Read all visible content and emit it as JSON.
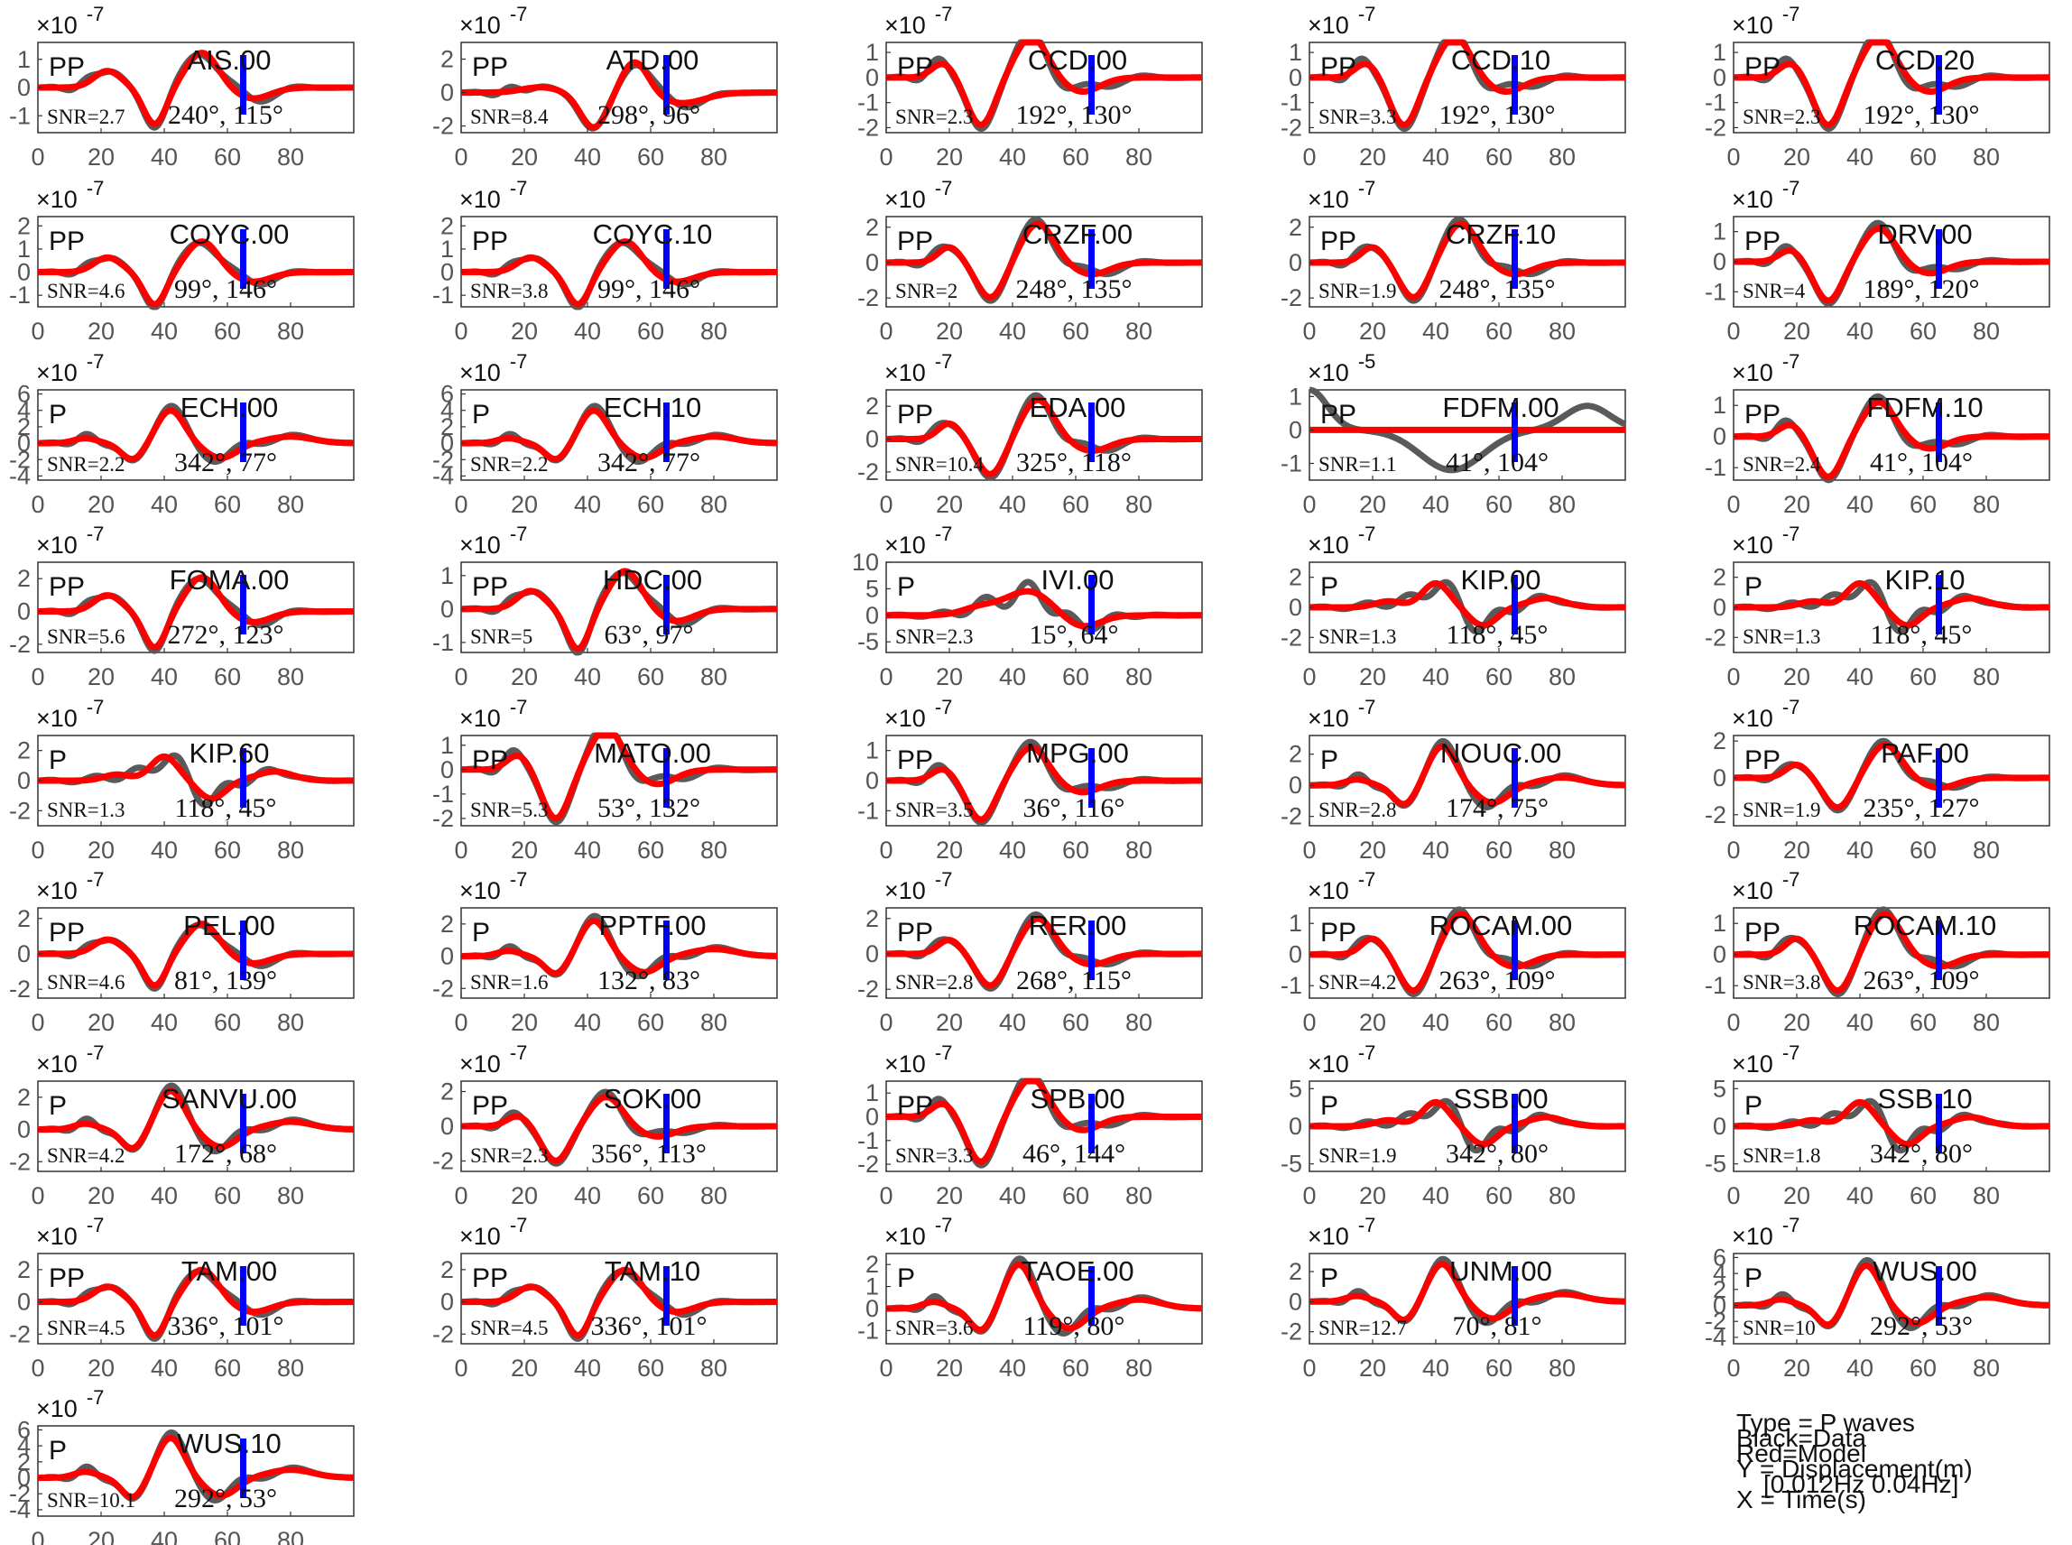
{
  "legend": [
    "Type = P waves",
    "Black=Data",
    "Red=Model",
    "Y = Displacement(m)",
    "[0.012Hz 0.04Hz]",
    "X = Time(s)"
  ],
  "colors": {
    "data": "#5a5a5a",
    "model": "#ff0000",
    "marker": "#0000ff",
    "axis": "#333333"
  },
  "chart_data": {
    "type": "line",
    "x_ticks": [
      0,
      20,
      40,
      60,
      80
    ],
    "xlim": [
      0,
      100
    ],
    "marker_time": 65,
    "panels": [
      {
        "station": "AIS.00",
        "phase": "PP",
        "snr": "SNR=2.7",
        "angles": "240°, 115°",
        "exponent": "-7",
        "yticks": [
          1,
          0,
          -1
        ],
        "ylim": [
          -1.6,
          1.6
        ],
        "amp": 1.3,
        "pattern": "c"
      },
      {
        "station": "ATD.00",
        "phase": "PP",
        "snr": "SNR=8.4",
        "angles": "298°, 96°",
        "exponent": "-7",
        "yticks": [
          2,
          0,
          -2
        ],
        "ylim": [
          -2.4,
          3
        ],
        "amp": 2.1,
        "pattern": "d"
      },
      {
        "station": "CCD.00",
        "phase": "PP",
        "snr": "SNR=2.3",
        "angles": "192°, 130°",
        "exponent": "-7",
        "yticks": [
          1,
          0,
          -1,
          -2
        ],
        "ylim": [
          -2.2,
          1.4
        ],
        "amp": 1.9,
        "pattern": "a"
      },
      {
        "station": "CCD.10",
        "phase": "PP",
        "snr": "SNR=3.3",
        "angles": "192°, 130°",
        "exponent": "-7",
        "yticks": [
          1,
          0,
          -1,
          -2
        ],
        "ylim": [
          -2.2,
          1.4
        ],
        "amp": 1.9,
        "pattern": "a"
      },
      {
        "station": "CCD.20",
        "phase": "PP",
        "snr": "SNR=2.3",
        "angles": "192°, 130°",
        "exponent": "-7",
        "yticks": [
          1,
          0,
          -1,
          -2
        ],
        "ylim": [
          -2.2,
          1.4
        ],
        "amp": 1.9,
        "pattern": "a"
      },
      {
        "station": "COYC.00",
        "phase": "PP",
        "snr": "SNR=4.6",
        "angles": "99°, 146°",
        "exponent": "-7",
        "yticks": [
          2,
          1,
          0,
          -1
        ],
        "ylim": [
          -1.5,
          2.4
        ],
        "amp": 1.4,
        "pattern": "c"
      },
      {
        "station": "COYC.10",
        "phase": "PP",
        "snr": "SNR=3.8",
        "angles": "99°, 146°",
        "exponent": "-7",
        "yticks": [
          2,
          1,
          0,
          -1
        ],
        "ylim": [
          -1.5,
          2.4
        ],
        "amp": 1.4,
        "pattern": "c"
      },
      {
        "station": "CRZF.00",
        "phase": "PP",
        "snr": "SNR=2",
        "angles": "248°, 135°",
        "exponent": "-7",
        "yticks": [
          2,
          0,
          -2
        ],
        "ylim": [
          -2.5,
          2.6
        ],
        "amp": 2.2,
        "pattern": "b"
      },
      {
        "station": "CRZF.10",
        "phase": "PP",
        "snr": "SNR=1.9",
        "angles": "248°, 135°",
        "exponent": "-7",
        "yticks": [
          2,
          0,
          -2
        ],
        "ylim": [
          -2.5,
          2.6
        ],
        "amp": 2.2,
        "pattern": "b"
      },
      {
        "station": "DRV.00",
        "phase": "PP",
        "snr": "SNR=4",
        "angles": "189°, 120°",
        "exponent": "-7",
        "yticks": [
          1,
          0,
          -1
        ],
        "ylim": [
          -1.5,
          1.5
        ],
        "amp": 1.3,
        "pattern": "a"
      },
      {
        "station": "ECH.00",
        "phase": "P",
        "snr": "SNR=2.2",
        "angles": "342°, 77°",
        "exponent": "-7",
        "yticks": [
          6,
          4,
          2,
          0,
          -2,
          -4
        ],
        "ylim": [
          -4.5,
          6.5
        ],
        "amp": 4,
        "pattern": "e"
      },
      {
        "station": "ECH.10",
        "phase": "P",
        "snr": "SNR=2.2",
        "angles": "342°, 77°",
        "exponent": "-7",
        "yticks": [
          6,
          4,
          2,
          0,
          -2,
          -4
        ],
        "ylim": [
          -4.5,
          6.5
        ],
        "amp": 4,
        "pattern": "e"
      },
      {
        "station": "EDA.00",
        "phase": "PP",
        "snr": "SNR=10.4",
        "angles": "325°, 118°",
        "exponent": "-7",
        "yticks": [
          2,
          0,
          -2
        ],
        "ylim": [
          -2.5,
          3
        ],
        "amp": 2.4,
        "pattern": "b"
      },
      {
        "station": "FDFM.00",
        "phase": "PP",
        "snr": "SNR=1.1",
        "angles": "41°, 104°",
        "exponent": "-5",
        "yticks": [
          1,
          0,
          -1
        ],
        "ylim": [
          -1.5,
          1.2
        ],
        "amp": 1.2,
        "pattern": "f"
      },
      {
        "station": "FDFM.10",
        "phase": "PP",
        "snr": "SNR=2.4",
        "angles": "41°, 104°",
        "exponent": "-7",
        "yticks": [
          1,
          0,
          -1
        ],
        "ylim": [
          -1.4,
          1.5
        ],
        "amp": 1.3,
        "pattern": "a"
      },
      {
        "station": "FOMA.00",
        "phase": "PP",
        "snr": "SNR=5.6",
        "angles": "272°, 123°",
        "exponent": "-7",
        "yticks": [
          2,
          0,
          -2
        ],
        "ylim": [
          -2.5,
          3
        ],
        "amp": 2.2,
        "pattern": "c"
      },
      {
        "station": "HDC.00",
        "phase": "PP",
        "snr": "SNR=5",
        "angles": "63°, 97°",
        "exponent": "-7",
        "yticks": [
          1,
          0,
          -1
        ],
        "ylim": [
          -1.3,
          1.4
        ],
        "amp": 1.2,
        "pattern": "c"
      },
      {
        "station": "IVI.00",
        "phase": "P",
        "snr": "SNR=2.3",
        "angles": "15°, 64°",
        "exponent": "-7",
        "yticks": [
          10,
          5,
          0,
          -5
        ],
        "ylim": [
          -7,
          10
        ],
        "amp": 5,
        "pattern": "g"
      },
      {
        "station": "KIP.00",
        "phase": "P",
        "snr": "SNR=1.3",
        "angles": "118°, 45°",
        "exponent": "-7",
        "yticks": [
          2,
          0,
          -2
        ],
        "ylim": [
          -3,
          3
        ],
        "amp": 2,
        "pattern": "h"
      },
      {
        "station": "KIP.10",
        "phase": "P",
        "snr": "SNR=1.3",
        "angles": "118°, 45°",
        "exponent": "-7",
        "yticks": [
          2,
          0,
          -2
        ],
        "ylim": [
          -3,
          3
        ],
        "amp": 2,
        "pattern": "h"
      },
      {
        "station": "KIP.60",
        "phase": "P",
        "snr": "SNR=1.3",
        "angles": "118°, 45°",
        "exponent": "-7",
        "yticks": [
          2,
          0,
          -2
        ],
        "ylim": [
          -3,
          3
        ],
        "amp": 2,
        "pattern": "h"
      },
      {
        "station": "MATO.00",
        "phase": "PP",
        "snr": "SNR=5.3",
        "angles": "53°, 132°",
        "exponent": "-7",
        "yticks": [
          1,
          0,
          -1,
          -2
        ],
        "ylim": [
          -2.3,
          1.4
        ],
        "amp": 2,
        "pattern": "a"
      },
      {
        "station": "MPG.00",
        "phase": "PP",
        "snr": "SNR=3.5",
        "angles": "36°, 116°",
        "exponent": "-7",
        "yticks": [
          1,
          0,
          -1
        ],
        "ylim": [
          -1.5,
          1.5
        ],
        "amp": 1.3,
        "pattern": "a"
      },
      {
        "station": "NOUC.00",
        "phase": "P",
        "snr": "SNR=2.8",
        "angles": "174°, 75°",
        "exponent": "-7",
        "yticks": [
          2,
          0,
          -2
        ],
        "ylim": [
          -2.6,
          3.2
        ],
        "amp": 2.5,
        "pattern": "e"
      },
      {
        "station": "PAF.00",
        "phase": "PP",
        "snr": "SNR=1.9",
        "angles": "235°, 127°",
        "exponent": "-7",
        "yticks": [
          2,
          0,
          -2
        ],
        "ylim": [
          -2.6,
          2.3
        ],
        "amp": 1.8,
        "pattern": "b"
      },
      {
        "station": "PEL.00",
        "phase": "PP",
        "snr": "SNR=4.6",
        "angles": "81°, 139°",
        "exponent": "-7",
        "yticks": [
          2,
          0,
          -2
        ],
        "ylim": [
          -2.5,
          2.6
        ],
        "amp": 1.8,
        "pattern": "c"
      },
      {
        "station": "PPTF.00",
        "phase": "P",
        "snr": "SNR=1.6",
        "angles": "132°, 83°",
        "exponent": "-7",
        "yticks": [
          2,
          0,
          -2
        ],
        "ylim": [
          -2.6,
          3
        ],
        "amp": 2.2,
        "pattern": "e"
      },
      {
        "station": "RER.00",
        "phase": "PP",
        "snr": "SNR=2.8",
        "angles": "268°, 115°",
        "exponent": "-7",
        "yticks": [
          2,
          0,
          -2
        ],
        "ylim": [
          -2.5,
          2.6
        ],
        "amp": 2,
        "pattern": "b"
      },
      {
        "station": "ROCAM.00",
        "phase": "PP",
        "snr": "SNR=4.2",
        "angles": "263°, 109°",
        "exponent": "-7",
        "yticks": [
          1,
          0,
          -1
        ],
        "ylim": [
          -1.4,
          1.5
        ],
        "amp": 1.3,
        "pattern": "b"
      },
      {
        "station": "ROCAM.10",
        "phase": "PP",
        "snr": "SNR=3.8",
        "angles": "263°, 109°",
        "exponent": "-7",
        "yticks": [
          1,
          0,
          -1
        ],
        "ylim": [
          -1.4,
          1.5
        ],
        "amp": 1.3,
        "pattern": "b"
      },
      {
        "station": "SANVU.00",
        "phase": "P",
        "snr": "SNR=4.2",
        "angles": "172°, 68°",
        "exponent": "-7",
        "yticks": [
          2,
          0,
          -2
        ],
        "ylim": [
          -2.6,
          3
        ],
        "amp": 2.4,
        "pattern": "e"
      },
      {
        "station": "SOK.00",
        "phase": "PP",
        "snr": "SNR=2.3",
        "angles": "356°, 113°",
        "exponent": "-7",
        "yticks": [
          2,
          0,
          -2
        ],
        "ylim": [
          -2.6,
          2.6
        ],
        "amp": 2,
        "pattern": "a"
      },
      {
        "station": "SPB.00",
        "phase": "PP",
        "snr": "SNR=3.3",
        "angles": "46°, 144°",
        "exponent": "-7",
        "yticks": [
          1,
          0,
          -1,
          -2
        ],
        "ylim": [
          -2.3,
          1.5
        ],
        "amp": 1.9,
        "pattern": "a"
      },
      {
        "station": "SSB.00",
        "phase": "P",
        "snr": "SNR=1.9",
        "angles": "342°, 80°",
        "exponent": "-7",
        "yticks": [
          5,
          0,
          -5
        ],
        "ylim": [
          -6,
          6
        ],
        "amp": 4,
        "pattern": "h"
      },
      {
        "station": "SSB.10",
        "phase": "P",
        "snr": "SNR=1.8",
        "angles": "342°, 80°",
        "exponent": "-7",
        "yticks": [
          5,
          0,
          -5
        ],
        "ylim": [
          -6,
          6
        ],
        "amp": 4,
        "pattern": "h"
      },
      {
        "station": "TAM.00",
        "phase": "PP",
        "snr": "SNR=4.5",
        "angles": "336°, 101°",
        "exponent": "-7",
        "yticks": [
          2,
          0,
          -2
        ],
        "ylim": [
          -2.6,
          3
        ],
        "amp": 2.1,
        "pattern": "c"
      },
      {
        "station": "TAM.10",
        "phase": "PP",
        "snr": "SNR=4.5",
        "angles": "336°, 101°",
        "exponent": "-7",
        "yticks": [
          2,
          0,
          -2
        ],
        "ylim": [
          -2.6,
          3
        ],
        "amp": 2.1,
        "pattern": "c"
      },
      {
        "station": "TAOE.00",
        "phase": "P",
        "snr": "SNR=3.6",
        "angles": "119°, 80°",
        "exponent": "-7",
        "yticks": [
          2,
          1,
          0,
          -1
        ],
        "ylim": [
          -1.6,
          2.5
        ],
        "amp": 2,
        "pattern": "e"
      },
      {
        "station": "UNM.00",
        "phase": "P",
        "snr": "SNR=12.7",
        "angles": "70°, 81°",
        "exponent": "-7",
        "yticks": [
          2,
          0,
          -2
        ],
        "ylim": [
          -2.8,
          3.2
        ],
        "amp": 2.5,
        "pattern": "e"
      },
      {
        "station": "WUS.00",
        "phase": "P",
        "snr": "SNR=10",
        "angles": "292°, 53°",
        "exponent": "-7",
        "yticks": [
          6,
          4,
          2,
          0,
          -2,
          -4
        ],
        "ylim": [
          -4.8,
          6.5
        ],
        "amp": 5,
        "pattern": "e"
      },
      {
        "station": "WUS.10",
        "phase": "P",
        "snr": "SNR=10.1",
        "angles": "292°, 53°",
        "exponent": "-7",
        "yticks": [
          6,
          4,
          2,
          0,
          -2,
          -4
        ],
        "ylim": [
          -4.8,
          6.5
        ],
        "amp": 5,
        "pattern": "e"
      }
    ]
  }
}
